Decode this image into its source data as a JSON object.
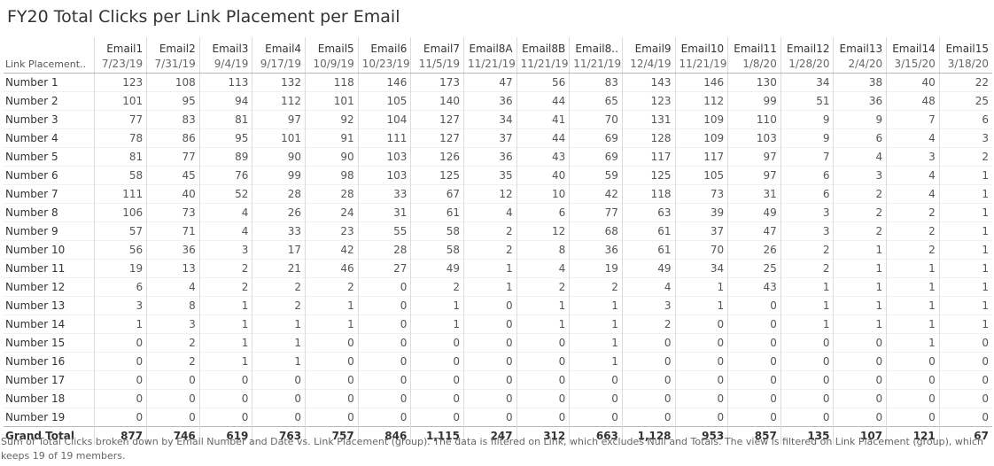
{
  "title": "FY20 Total Clicks per Link Placement per Email",
  "caption": "Sum of Total Clicks broken down by Email Number and Date vs. Link Placement (group). The data is filtered on Link, which excludes Null and Totals. The view is filtered on Link Placement (group), which keeps 19 of 19 members.",
  "chart_data": {
    "type": "table",
    "row_header": "Link Placement..",
    "columns": [
      {
        "email": "Email1",
        "date": "7/23/19"
      },
      {
        "email": "Email2",
        "date": "7/31/19"
      },
      {
        "email": "Email3",
        "date": "9/4/19"
      },
      {
        "email": "Email4",
        "date": "9/17/19"
      },
      {
        "email": "Email5",
        "date": "10/9/19"
      },
      {
        "email": "Email6",
        "date": "10/23/19"
      },
      {
        "email": "Email7",
        "date": "11/5/19"
      },
      {
        "email": "Email8A",
        "date": "11/21/19"
      },
      {
        "email": "Email8B",
        "date": "11/21/19"
      },
      {
        "email": "Email8..",
        "date": "11/21/19"
      },
      {
        "email": "Email9",
        "date": "12/4/19"
      },
      {
        "email": "Email10",
        "date": "11/21/19"
      },
      {
        "email": "Email11",
        "date": "1/8/20"
      },
      {
        "email": "Email12",
        "date": "1/28/20"
      },
      {
        "email": "Email13",
        "date": "2/4/20"
      },
      {
        "email": "Email14",
        "date": "3/15/20"
      },
      {
        "email": "Email15",
        "date": "3/18/20"
      }
    ],
    "rows": [
      {
        "label": "Number 1",
        "values": [
          "123",
          "108",
          "113",
          "132",
          "118",
          "146",
          "173",
          "47",
          "56",
          "83",
          "143",
          "146",
          "130",
          "34",
          "38",
          "40",
          "22"
        ]
      },
      {
        "label": "Number 2",
        "values": [
          "101",
          "95",
          "94",
          "112",
          "101",
          "105",
          "140",
          "36",
          "44",
          "65",
          "123",
          "112",
          "99",
          "51",
          "36",
          "48",
          "25"
        ]
      },
      {
        "label": "Number 3",
        "values": [
          "77",
          "83",
          "81",
          "97",
          "92",
          "104",
          "127",
          "34",
          "41",
          "70",
          "131",
          "109",
          "110",
          "9",
          "9",
          "7",
          "6"
        ]
      },
      {
        "label": "Number 4",
        "values": [
          "78",
          "86",
          "95",
          "101",
          "91",
          "111",
          "127",
          "37",
          "44",
          "69",
          "128",
          "109",
          "103",
          "9",
          "6",
          "4",
          "3"
        ]
      },
      {
        "label": "Number 5",
        "values": [
          "81",
          "77",
          "89",
          "90",
          "90",
          "103",
          "126",
          "36",
          "43",
          "69",
          "117",
          "117",
          "97",
          "7",
          "4",
          "3",
          "2"
        ]
      },
      {
        "label": "Number 6",
        "values": [
          "58",
          "45",
          "76",
          "99",
          "98",
          "103",
          "125",
          "35",
          "40",
          "59",
          "125",
          "105",
          "97",
          "6",
          "3",
          "4",
          "1"
        ]
      },
      {
        "label": "Number 7",
        "values": [
          "111",
          "40",
          "52",
          "28",
          "28",
          "33",
          "67",
          "12",
          "10",
          "42",
          "118",
          "73",
          "31",
          "6",
          "2",
          "4",
          "1"
        ]
      },
      {
        "label": "Number 8",
        "values": [
          "106",
          "73",
          "4",
          "26",
          "24",
          "31",
          "61",
          "4",
          "6",
          "77",
          "63",
          "39",
          "49",
          "3",
          "2",
          "2",
          "1"
        ]
      },
      {
        "label": "Number 9",
        "values": [
          "57",
          "71",
          "4",
          "33",
          "23",
          "55",
          "58",
          "2",
          "12",
          "68",
          "61",
          "37",
          "47",
          "3",
          "2",
          "2",
          "1"
        ]
      },
      {
        "label": "Number 10",
        "values": [
          "56",
          "36",
          "3",
          "17",
          "42",
          "28",
          "58",
          "2",
          "8",
          "36",
          "61",
          "70",
          "26",
          "2",
          "1",
          "2",
          "1"
        ]
      },
      {
        "label": "Number 11",
        "values": [
          "19",
          "13",
          "2",
          "21",
          "46",
          "27",
          "49",
          "1",
          "4",
          "19",
          "49",
          "34",
          "25",
          "2",
          "1",
          "1",
          "1"
        ]
      },
      {
        "label": "Number 12",
        "values": [
          "6",
          "4",
          "2",
          "2",
          "2",
          "0",
          "2",
          "1",
          "2",
          "2",
          "4",
          "1",
          "43",
          "1",
          "1",
          "1",
          "1"
        ]
      },
      {
        "label": "Number  13",
        "values": [
          "3",
          "8",
          "1",
          "2",
          "1",
          "0",
          "1",
          "0",
          "1",
          "1",
          "3",
          "1",
          "0",
          "1",
          "1",
          "1",
          "1"
        ]
      },
      {
        "label": "Number 14",
        "values": [
          "1",
          "3",
          "1",
          "1",
          "1",
          "0",
          "1",
          "0",
          "1",
          "1",
          "2",
          "0",
          "0",
          "1",
          "1",
          "1",
          "1"
        ]
      },
      {
        "label": "Number 15",
        "values": [
          "0",
          "2",
          "1",
          "1",
          "0",
          "0",
          "0",
          "0",
          "0",
          "1",
          "0",
          "0",
          "0",
          "0",
          "0",
          "1",
          "0"
        ]
      },
      {
        "label": "Number 16",
        "values": [
          "0",
          "2",
          "1",
          "1",
          "0",
          "0",
          "0",
          "0",
          "0",
          "1",
          "0",
          "0",
          "0",
          "0",
          "0",
          "0",
          "0"
        ]
      },
      {
        "label": "Number 17",
        "values": [
          "0",
          "0",
          "0",
          "0",
          "0",
          "0",
          "0",
          "0",
          "0",
          "0",
          "0",
          "0",
          "0",
          "0",
          "0",
          "0",
          "0"
        ]
      },
      {
        "label": "Number 18",
        "values": [
          "0",
          "0",
          "0",
          "0",
          "0",
          "0",
          "0",
          "0",
          "0",
          "0",
          "0",
          "0",
          "0",
          "0",
          "0",
          "0",
          "0"
        ]
      },
      {
        "label": "Number 19",
        "values": [
          "0",
          "0",
          "0",
          "0",
          "0",
          "0",
          "0",
          "0",
          "0",
          "0",
          "0",
          "0",
          "0",
          "0",
          "0",
          "0",
          "0"
        ]
      }
    ],
    "total": {
      "label": "Grand Total",
      "values": [
        "877",
        "746",
        "619",
        "763",
        "757",
        "846",
        "1,115",
        "247",
        "312",
        "663",
        "1,128",
        "953",
        "857",
        "135",
        "107",
        "121",
        "67"
      ]
    }
  }
}
